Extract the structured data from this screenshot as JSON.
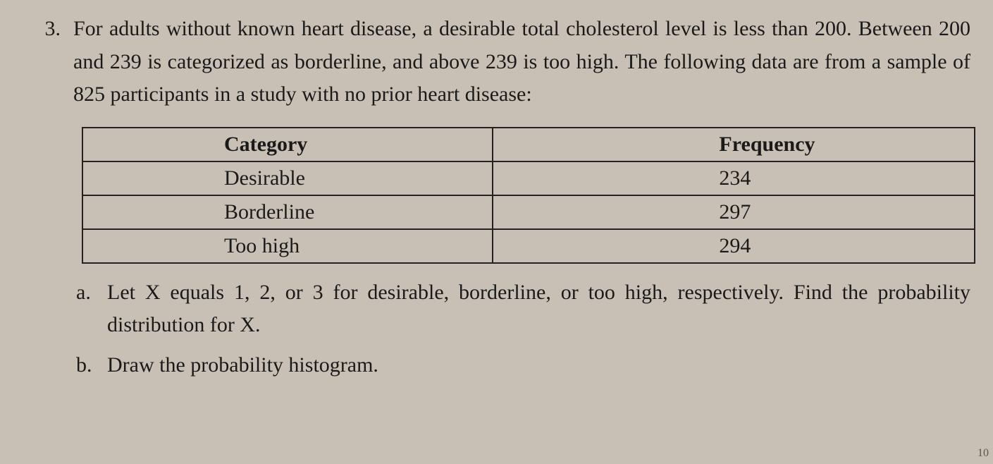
{
  "question": {
    "number": "3.",
    "text": "For adults without known heart disease, a desirable total cholesterol level is less than 200. Between 200 and 239 is categorized as borderline, and above 239 is too high. The following data are from a sample of 825 participants in a study with no prior heart disease:"
  },
  "table": {
    "columns": [
      "Category",
      "Frequency"
    ],
    "rows": [
      [
        "Desirable",
        "234"
      ],
      [
        "Borderline",
        "297"
      ],
      [
        "Too high",
        "294"
      ]
    ],
    "border_color": "#222222",
    "header_fontweight": "bold",
    "cell_fontsize": 30
  },
  "subparts": [
    {
      "label": "a.",
      "text": "Let X equals 1, 2, or 3 for desirable, borderline, or too high, respectively. Find the probability distribution for X."
    },
    {
      "label": "b.",
      "text": "Draw the probability histogram."
    }
  ],
  "corner_mark": "10",
  "colors": {
    "background": "#c8c0b4",
    "text": "#1a1a1a"
  }
}
